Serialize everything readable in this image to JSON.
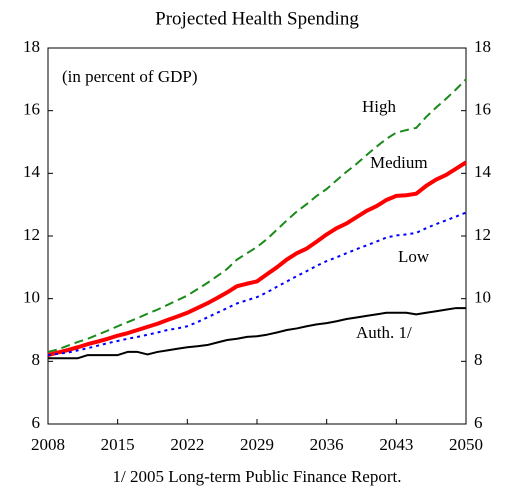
{
  "chart_data": {
    "type": "line",
    "title": "Projected Health Spending",
    "annotation": "(in percent of GDP)",
    "footnote": "1/ 2005 Long-term Public Finance Report.",
    "x": [
      2008,
      2009,
      2010,
      2011,
      2012,
      2013,
      2014,
      2015,
      2016,
      2017,
      2018,
      2019,
      2020,
      2021,
      2022,
      2023,
      2024,
      2025,
      2026,
      2027,
      2028,
      2029,
      2030,
      2031,
      2032,
      2033,
      2034,
      2035,
      2036,
      2037,
      2038,
      2039,
      2040,
      2041,
      2042,
      2043,
      2044,
      2045,
      2046,
      2047,
      2048,
      2049,
      2050
    ],
    "series": [
      {
        "name": "High",
        "color": "#1a8a1a",
        "dash": "dashed",
        "values": [
          8.3,
          8.38,
          8.5,
          8.62,
          8.72,
          8.85,
          8.98,
          9.12,
          9.25,
          9.38,
          9.52,
          9.65,
          9.8,
          9.95,
          10.1,
          10.3,
          10.5,
          10.72,
          10.95,
          11.25,
          11.45,
          11.65,
          11.9,
          12.2,
          12.5,
          12.78,
          13.02,
          13.28,
          13.5,
          13.78,
          14.05,
          14.3,
          14.58,
          14.85,
          15.1,
          15.3,
          15.38,
          15.45,
          15.8,
          16.1,
          16.38,
          16.68,
          17.0
        ]
      },
      {
        "name": "Medium",
        "color": "#ff0000",
        "dash": "solid-thick",
        "values": [
          8.2,
          8.28,
          8.36,
          8.45,
          8.55,
          8.63,
          8.72,
          8.82,
          8.9,
          9.0,
          9.1,
          9.2,
          9.32,
          9.43,
          9.55,
          9.7,
          9.85,
          10.02,
          10.2,
          10.4,
          10.48,
          10.55,
          10.78,
          11.0,
          11.25,
          11.45,
          11.6,
          11.82,
          12.05,
          12.25,
          12.4,
          12.6,
          12.8,
          12.95,
          13.15,
          13.28,
          13.3,
          13.35,
          13.6,
          13.8,
          13.95,
          14.15,
          14.35
        ]
      },
      {
        "name": "Low",
        "color": "#0000ff",
        "dash": "dotted",
        "values": [
          8.2,
          8.24,
          8.28,
          8.35,
          8.42,
          8.5,
          8.58,
          8.65,
          8.72,
          8.78,
          8.85,
          8.92,
          9.0,
          9.05,
          9.12,
          9.25,
          9.4,
          9.55,
          9.7,
          9.85,
          9.95,
          10.05,
          10.2,
          10.38,
          10.55,
          10.72,
          10.88,
          11.05,
          11.2,
          11.32,
          11.45,
          11.58,
          11.7,
          11.82,
          11.95,
          12.02,
          12.05,
          12.1,
          12.25,
          12.38,
          12.5,
          12.62,
          12.75
        ]
      },
      {
        "name": "Auth. 1/",
        "color": "#000000",
        "dash": "solid",
        "values": [
          8.1,
          8.1,
          8.1,
          8.1,
          8.2,
          8.2,
          8.2,
          8.2,
          8.3,
          8.3,
          8.22,
          8.3,
          8.35,
          8.4,
          8.45,
          8.48,
          8.52,
          8.6,
          8.68,
          8.72,
          8.78,
          8.8,
          8.85,
          8.92,
          9.0,
          9.05,
          9.12,
          9.18,
          9.22,
          9.28,
          9.35,
          9.4,
          9.45,
          9.5,
          9.55,
          9.55,
          9.55,
          9.5,
          9.55,
          9.6,
          9.65,
          9.7,
          9.7
        ]
      }
    ],
    "xlim": [
      2008,
      2050
    ],
    "xticks": [
      2008,
      2015,
      2022,
      2029,
      2036,
      2043,
      2050
    ],
    "ylim": [
      6,
      18
    ],
    "yticks": [
      6,
      8,
      10,
      12,
      14,
      16,
      18
    ],
    "y2lim": [
      6,
      18
    ],
    "y2ticks": [
      6,
      8,
      10,
      12,
      14,
      16,
      18
    ],
    "grid": false
  }
}
